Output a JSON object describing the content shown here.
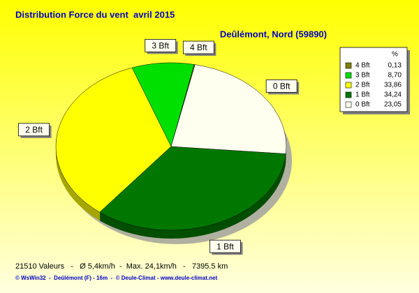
{
  "chart_data": {
    "type": "pie",
    "title": "Distribution Force du vent  avril 2015",
    "subtitle": "Deûlémont, Nord (59890)",
    "categories": [
      "4 Bft",
      "3 Bft",
      "2 Bft",
      "1 Bft",
      "0 Bft"
    ],
    "values": [
      0.13,
      8.7,
      33.86,
      34.24,
      23.05
    ],
    "value_labels": [
      "0,13",
      "8,70",
      "33,86",
      "34,24",
      "23,05"
    ],
    "colors": [
      "#808000",
      "#00e000",
      "#ffff00",
      "#007800",
      "#fffff0"
    ],
    "legend_header": "%",
    "legend": "right",
    "footer": "21510 Valeurs   -   Ø 5,4km/h  -  Max. 24,1km/h   -   7395.5 km",
    "credits": "© WsWin32  -  Deûlémont (F) - 16m  -  © Deule-Climat - www.deule-climat.net"
  }
}
